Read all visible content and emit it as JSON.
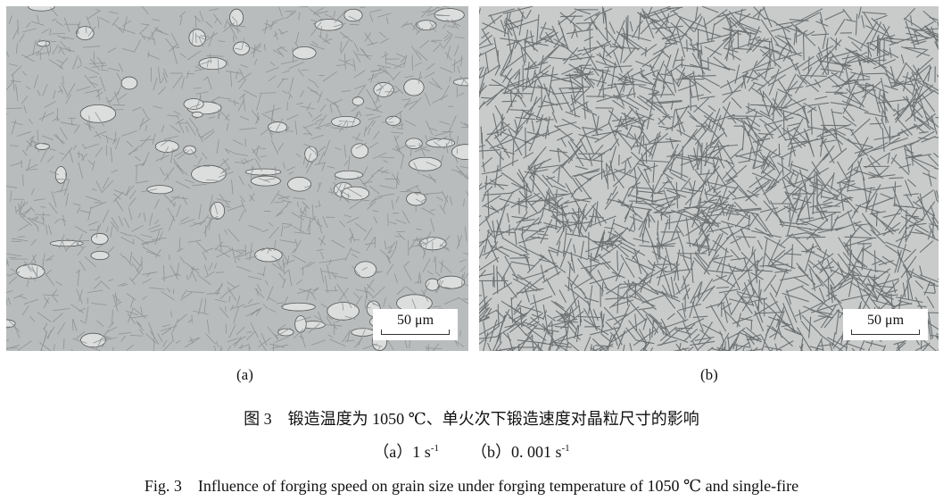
{
  "panels": [
    {
      "label": "(a)",
      "scale_bar": "50 μm"
    },
    {
      "label": "(b)",
      "scale_bar": "50 μm"
    }
  ],
  "caption": {
    "zh": "图 3　锻造温度为 1050 ℃、单火次下锻造速度对晶粒尺寸的影响",
    "sub_a": "（a）1 s",
    "sub_b": "（b）0. 001 s",
    "exp": "-1",
    "en": "Fig. 3　Influence of forging speed on grain size under forging temperature of 1050 ℃ and single-fire"
  }
}
